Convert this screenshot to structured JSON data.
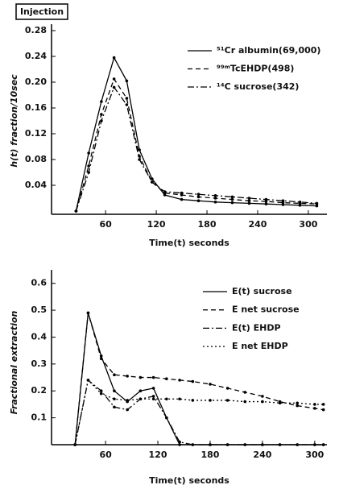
{
  "chart_data": [
    {
      "type": "line",
      "annotation": "Injection",
      "ylabel": "h(t) fraction/10sec",
      "xlabel": "Time(t) seconds",
      "xlim": [
        -4,
        322
      ],
      "xticks": [
        60,
        120,
        180,
        240,
        300
      ],
      "ylim": [
        -0.005,
        0.29
      ],
      "yticks": [
        0.04,
        0.08,
        0.12,
        0.16,
        {
          "value": 0.2,
          "label": "0.20"
        },
        0.24,
        0.28
      ],
      "x": [
        25,
        40,
        55,
        70,
        85,
        100,
        115,
        130,
        150,
        170,
        190,
        210,
        230,
        250,
        270,
        290,
        310
      ],
      "series": [
        {
          "name": "⁵¹Cr albumin(69,000)",
          "color": "#000",
          "dash": "solid",
          "values": [
            0,
            0.09,
            0.17,
            0.238,
            0.202,
            0.095,
            0.05,
            0.025,
            0.018,
            0.016,
            0.014,
            0.013,
            0.012,
            0.011,
            0.01,
            0.009,
            0.008
          ]
        },
        {
          "name": "⁹⁹ᵐTcEHDP(498)",
          "color": "#000",
          "dash": "dashed",
          "values": [
            0,
            0.07,
            0.15,
            0.205,
            0.175,
            0.085,
            0.045,
            0.028,
            0.025,
            0.022,
            0.02,
            0.018,
            0.016,
            0.015,
            0.013,
            0.012,
            0.011
          ]
        },
        {
          "name": "¹⁴C sucrose(342)",
          "color": "#000",
          "dash": "dashdot",
          "values": [
            0,
            0.06,
            0.14,
            0.192,
            0.165,
            0.08,
            0.045,
            0.03,
            0.028,
            0.026,
            0.024,
            0.022,
            0.02,
            0.018,
            0.016,
            0.014,
            0.012
          ]
        }
      ]
    },
    {
      "type": "line",
      "ylabel": "Fractional extraction",
      "xlabel": "Time(t) seconds",
      "xlim": [
        -2,
        314
      ],
      "xticks": [
        60,
        120,
        180,
        240,
        300
      ],
      "ylim": [
        0,
        0.65
      ],
      "yticks": [
        0.1,
        0.2,
        0.3,
        0.4,
        0.5,
        0.6
      ],
      "x": [
        25,
        40,
        55,
        70,
        85,
        100,
        115,
        130,
        145,
        160,
        180,
        200,
        220,
        240,
        260,
        280,
        300,
        310
      ],
      "series": [
        {
          "name": "E(t) sucrose",
          "color": "#000",
          "dash": "solid",
          "values": [
            0,
            0.49,
            0.33,
            0.2,
            0.16,
            0.2,
            0.21,
            0.1,
            0,
            0,
            0,
            0,
            0,
            0,
            0,
            0,
            0,
            0
          ]
        },
        {
          "name": "E net sucrose",
          "color": "#000",
          "dash": "dashed",
          "values": [
            0,
            0.49,
            0.32,
            0.26,
            0.255,
            0.25,
            0.25,
            0.245,
            0.24,
            0.235,
            0.225,
            0.21,
            0.195,
            0.18,
            0.16,
            0.145,
            0.135,
            0.13
          ]
        },
        {
          "name": "E(t) EHDP",
          "color": "#000",
          "dash": "dashdot",
          "values": [
            0,
            0.24,
            0.2,
            0.14,
            0.13,
            0.17,
            0.18,
            0.1,
            0.01,
            0,
            0,
            0,
            0,
            0,
            0,
            0,
            0,
            0
          ]
        },
        {
          "name": "E net EHDP",
          "color": "#000",
          "dash": "dotted",
          "values": [
            0,
            0.24,
            0.19,
            0.17,
            0.165,
            0.17,
            0.17,
            0.17,
            0.17,
            0.165,
            0.165,
            0.165,
            0.16,
            0.16,
            0.155,
            0.155,
            0.15,
            0.15
          ]
        }
      ]
    }
  ]
}
